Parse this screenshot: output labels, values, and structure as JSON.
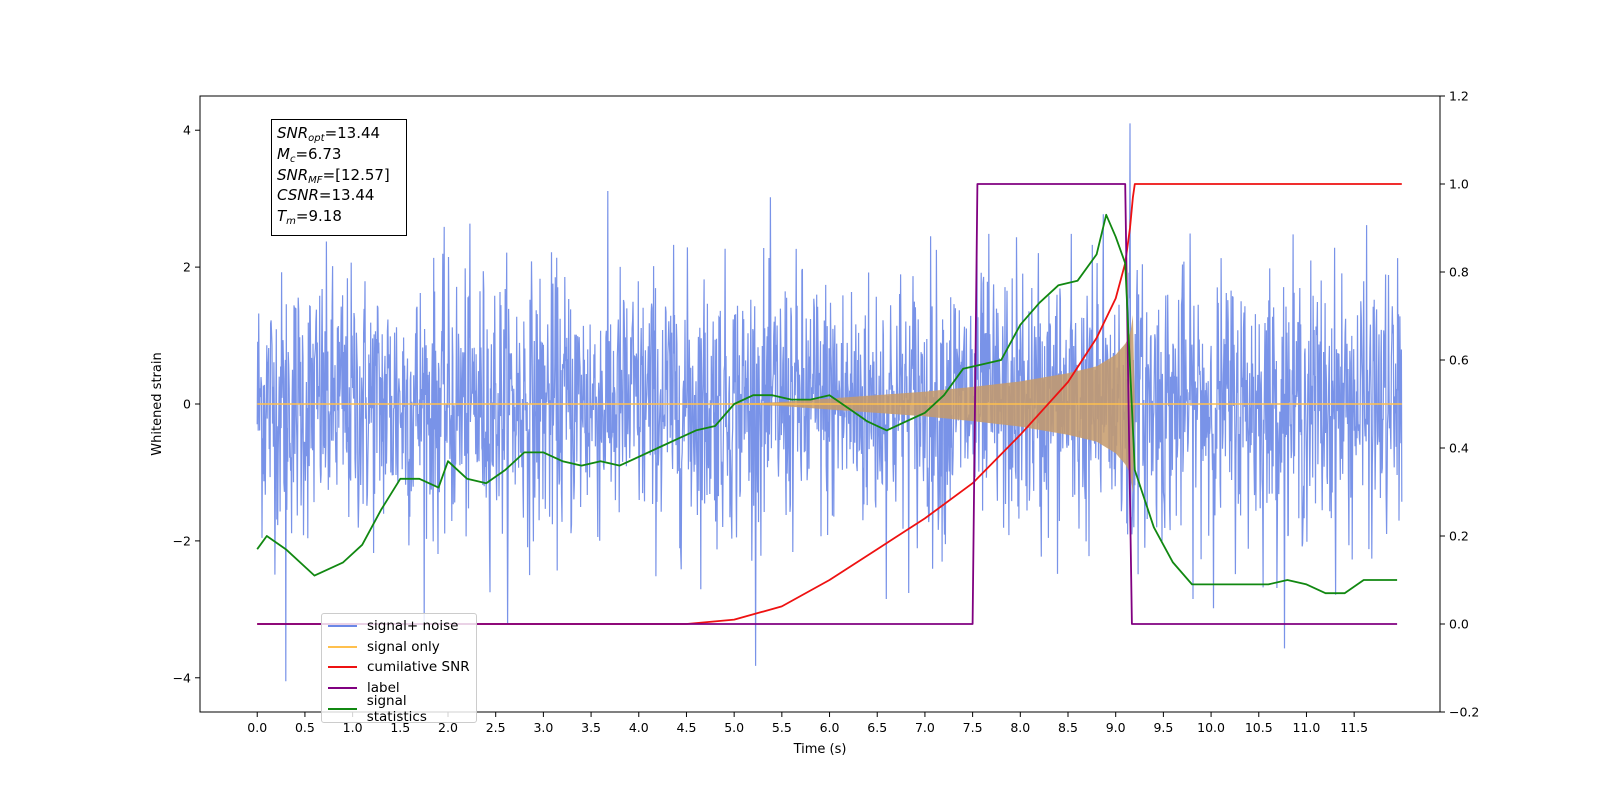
{
  "chart_data": {
    "type": "line",
    "xlabel": "Time (s)",
    "ylabel_left": "Whitened strain",
    "ylabel_right": "",
    "xlim": [
      -0.6,
      12.4
    ],
    "ylim_left": [
      -4.5,
      4.5
    ],
    "ylim_right": [
      -0.2,
      1.2
    ],
    "x_ticks": [
      "0.0",
      "0.5",
      "1.0",
      "1.5",
      "2.0",
      "2.5",
      "3.0",
      "3.5",
      "4.0",
      "4.5",
      "5.0",
      "5.5",
      "6.0",
      "6.5",
      "7.0",
      "7.5",
      "8.0",
      "8.5",
      "9.0",
      "9.5",
      "10.0",
      "10.5",
      "11.0",
      "11.5"
    ],
    "y_ticks_left": [
      "−4",
      "−2",
      "0",
      "2",
      "4"
    ],
    "y_ticks_right": [
      "−0.2",
      "0.0",
      "0.2",
      "0.4",
      "0.6",
      "0.8",
      "1.0",
      "1.2"
    ],
    "grid": false,
    "legend_position": "lower-left",
    "annotation": {
      "snr_opt_label": "SNR",
      "snr_opt_sub": "opt",
      "snr_opt_value": "=13.44",
      "mc_label": "M",
      "mc_sub": "c",
      "mc_value": "=6.73",
      "snr_mf_label": "SNR",
      "snr_mf_sub": "MF",
      "snr_mf_value": "=[12.57]",
      "csnr_label": "CSNR",
      "csnr_value": "=13.44",
      "tm_label": "T",
      "tm_sub": "m",
      "tm_value": "=9.18"
    },
    "series": [
      {
        "name": "signal+ noise",
        "color": "#6a87e6",
        "axis": "left",
        "kind": "noise",
        "base_amplitude": 1.0,
        "t_start": 0.0,
        "t_end": 12.0,
        "max_peak": 4.1,
        "max_peak_t": 9.15,
        "min_trough": -4.05,
        "min_trough_t": 0.3
      },
      {
        "name": "signal only",
        "color": "#ffc04d",
        "axis": "left",
        "kind": "chirp",
        "envelope": [
          [
            0.0,
            0.0
          ],
          [
            5.0,
            0.0
          ],
          [
            5.5,
            0.03
          ],
          [
            6.0,
            0.08
          ],
          [
            6.5,
            0.13
          ],
          [
            7.0,
            0.18
          ],
          [
            7.5,
            0.25
          ],
          [
            8.0,
            0.33
          ],
          [
            8.5,
            0.45
          ],
          [
            8.8,
            0.55
          ],
          [
            9.0,
            0.72
          ],
          [
            9.1,
            0.88
          ],
          [
            9.15,
            1.0
          ],
          [
            9.18,
            1.3
          ],
          [
            9.2,
            0.0
          ],
          [
            12.0,
            0.0
          ]
        ]
      },
      {
        "name": "cumilative SNR",
        "color": "#ee1111",
        "axis": "right",
        "x": [
          0.0,
          4.5,
          5.0,
          5.5,
          6.0,
          6.5,
          7.0,
          7.5,
          8.0,
          8.5,
          8.8,
          9.0,
          9.1,
          9.15,
          9.18,
          9.2,
          12.0
        ],
        "y": [
          0.0,
          0.0,
          0.01,
          0.04,
          0.1,
          0.17,
          0.24,
          0.32,
          0.43,
          0.55,
          0.65,
          0.74,
          0.82,
          0.9,
          0.97,
          1.0,
          1.0
        ]
      },
      {
        "name": "label",
        "color": "#800080",
        "axis": "right",
        "x": [
          0.0,
          7.5,
          7.55,
          9.1,
          9.17,
          11.95
        ],
        "y": [
          0.0,
          0.0,
          1.0,
          1.0,
          0.0,
          0.0
        ]
      },
      {
        "name": "signal statistics",
        "color": "#118811",
        "axis": "right",
        "x": [
          0.0,
          0.1,
          0.3,
          0.6,
          0.9,
          1.1,
          1.3,
          1.5,
          1.7,
          1.9,
          2.0,
          2.2,
          2.4,
          2.6,
          2.8,
          3.0,
          3.2,
          3.4,
          3.6,
          3.8,
          4.0,
          4.2,
          4.4,
          4.6,
          4.8,
          5.0,
          5.2,
          5.4,
          5.6,
          5.8,
          6.0,
          6.2,
          6.4,
          6.6,
          6.8,
          7.0,
          7.2,
          7.4,
          7.6,
          7.8,
          8.0,
          8.2,
          8.4,
          8.6,
          8.8,
          8.9,
          9.0,
          9.1,
          9.2,
          9.4,
          9.6,
          9.8,
          10.0,
          10.2,
          10.4,
          10.6,
          10.8,
          11.0,
          11.2,
          11.4,
          11.6,
          11.8,
          11.95
        ],
        "y": [
          0.17,
          0.2,
          0.17,
          0.11,
          0.14,
          0.18,
          0.26,
          0.33,
          0.33,
          0.31,
          0.37,
          0.33,
          0.32,
          0.35,
          0.39,
          0.39,
          0.37,
          0.36,
          0.37,
          0.36,
          0.38,
          0.4,
          0.42,
          0.44,
          0.45,
          0.5,
          0.52,
          0.52,
          0.51,
          0.51,
          0.52,
          0.49,
          0.46,
          0.44,
          0.46,
          0.48,
          0.52,
          0.58,
          0.59,
          0.6,
          0.68,
          0.73,
          0.77,
          0.78,
          0.84,
          0.93,
          0.88,
          0.82,
          0.35,
          0.22,
          0.14,
          0.09,
          0.09,
          0.09,
          0.09,
          0.09,
          0.1,
          0.09,
          0.07,
          0.07,
          0.1,
          0.1,
          0.1
        ]
      }
    ]
  }
}
